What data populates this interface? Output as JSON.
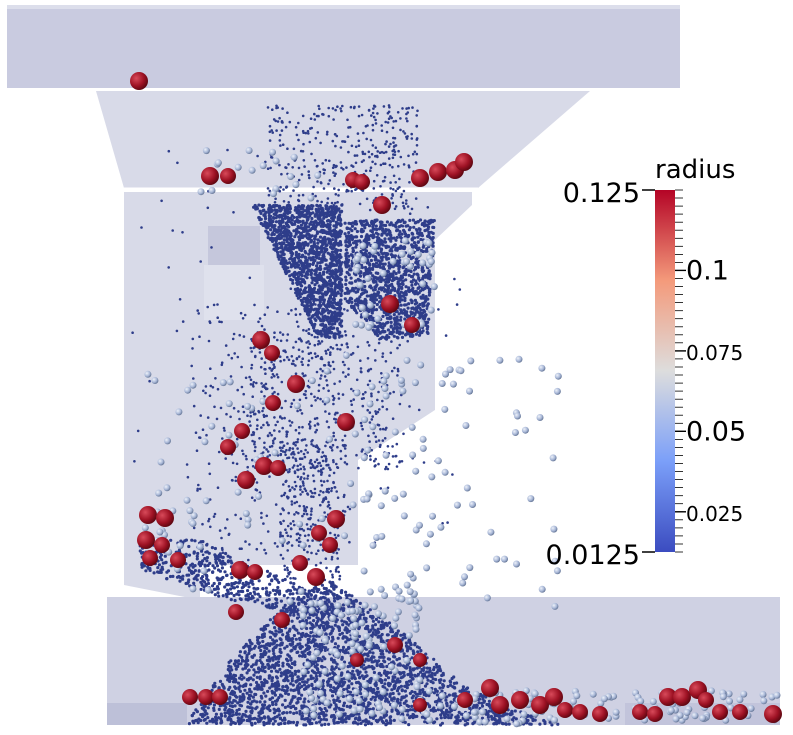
{
  "scene": {
    "background": "#ffffff",
    "wall_color": "#c9cbe0",
    "wall_light": "#d8dae8",
    "particle_small": "#2e3d8a",
    "particle_medium": "#aab8d8",
    "particle_large": "#9e1224"
  },
  "legend": {
    "title": "radius",
    "max_label": "0.125",
    "min_label": "0.0125",
    "ticks": [
      {
        "label": "0.1",
        "value": 0.1
      },
      {
        "label": "0.075",
        "value": 0.075
      },
      {
        "label": "0.05",
        "value": 0.05
      },
      {
        "label": "0.025",
        "value": 0.025
      }
    ],
    "range": [
      0.0125,
      0.125
    ],
    "colormap": [
      "#3b4cc0",
      "#7b9ff9",
      "#dddddd",
      "#f49a7b",
      "#b40426"
    ]
  }
}
